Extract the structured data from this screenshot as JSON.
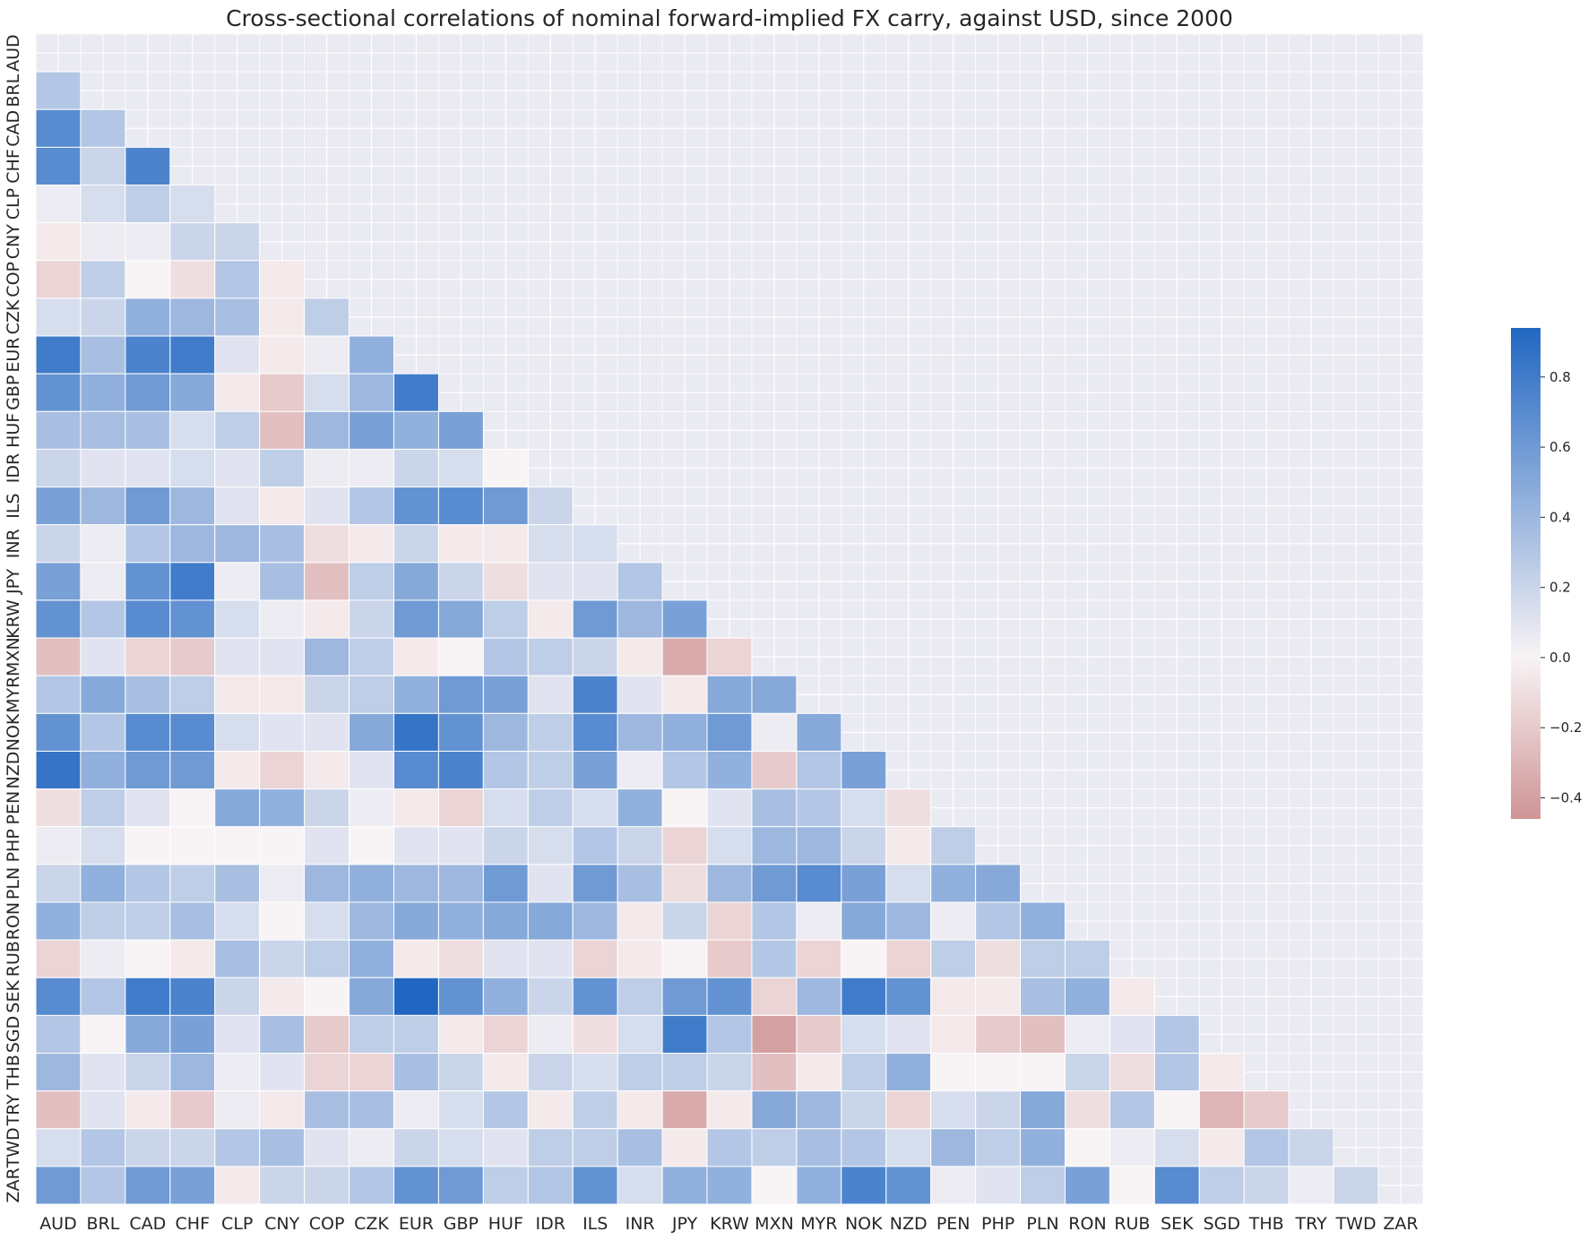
{
  "chart_data": {
    "type": "heatmap",
    "title": "Cross-sectional correlations of nominal forward-implied FX carry, against USD, since 2000",
    "labels": [
      "AUD",
      "BRL",
      "CAD",
      "CHF",
      "CLP",
      "CNY",
      "COP",
      "CZK",
      "EUR",
      "GBP",
      "HUF",
      "IDR",
      "ILS",
      "INR",
      "JPY",
      "KRW",
      "MXN",
      "MYR",
      "NOK",
      "NZD",
      "PEN",
      "PHP",
      "PLN",
      "RON",
      "RUB",
      "SEK",
      "SGD",
      "THB",
      "TRY",
      "TWD",
      "ZAR"
    ],
    "mask": "upper-triangle-and-diagonal",
    "values": [
      [],
      [
        0.3
      ],
      [
        0.7,
        0.3
      ],
      [
        0.7,
        0.2,
        0.75
      ],
      [
        0.05,
        0.15,
        0.25,
        0.15
      ],
      [
        -0.05,
        0.05,
        0.05,
        0.2,
        0.2
      ],
      [
        -0.15,
        0.25,
        0.0,
        -0.1,
        0.3,
        -0.05
      ],
      [
        0.15,
        0.2,
        0.45,
        0.4,
        0.35,
        -0.05,
        0.25
      ],
      [
        0.8,
        0.35,
        0.75,
        0.8,
        0.1,
        -0.05,
        0.05,
        0.45
      ],
      [
        0.65,
        0.45,
        0.6,
        0.5,
        -0.05,
        -0.2,
        0.15,
        0.4,
        0.8
      ],
      [
        0.35,
        0.35,
        0.35,
        0.15,
        0.25,
        -0.25,
        0.4,
        0.55,
        0.45,
        0.55
      ],
      [
        0.2,
        0.1,
        0.1,
        0.15,
        0.1,
        0.25,
        0.05,
        0.05,
        0.2,
        0.15,
        0.0
      ],
      [
        0.55,
        0.4,
        0.6,
        0.4,
        0.1,
        -0.05,
        0.1,
        0.3,
        0.65,
        0.7,
        0.6,
        0.2
      ],
      [
        0.2,
        0.05,
        0.3,
        0.4,
        0.4,
        0.35,
        -0.1,
        -0.05,
        0.2,
        -0.05,
        -0.05,
        0.15,
        0.15
      ],
      [
        0.55,
        0.05,
        0.65,
        0.8,
        0.05,
        0.35,
        -0.25,
        0.25,
        0.5,
        0.2,
        -0.1,
        0.1,
        0.1,
        0.3
      ],
      [
        0.65,
        0.3,
        0.7,
        0.65,
        0.15,
        0.05,
        -0.05,
        0.2,
        0.6,
        0.5,
        0.25,
        -0.05,
        0.6,
        0.4,
        0.55
      ],
      [
        -0.25,
        0.1,
        -0.15,
        -0.2,
        0.1,
        0.1,
        0.4,
        0.25,
        -0.05,
        0.0,
        0.3,
        0.25,
        0.2,
        -0.05,
        -0.35,
        -0.15
      ],
      [
        0.3,
        0.5,
        0.35,
        0.25,
        -0.05,
        -0.05,
        0.2,
        0.25,
        0.45,
        0.6,
        0.55,
        0.1,
        0.75,
        0.1,
        -0.05,
        0.5,
        0.5
      ],
      [
        0.65,
        0.3,
        0.7,
        0.7,
        0.15,
        0.1,
        0.1,
        0.5,
        0.85,
        0.65,
        0.4,
        0.25,
        0.7,
        0.4,
        0.45,
        0.6,
        0.05,
        0.5
      ],
      [
        0.85,
        0.45,
        0.6,
        0.6,
        -0.05,
        -0.15,
        -0.05,
        0.1,
        0.7,
        0.75,
        0.3,
        0.25,
        0.55,
        0.05,
        0.3,
        0.45,
        -0.2,
        0.3,
        0.55
      ],
      [
        -0.1,
        0.25,
        0.1,
        0.0,
        0.5,
        0.45,
        0.2,
        0.05,
        -0.05,
        -0.15,
        0.15,
        0.25,
        0.15,
        0.45,
        0.0,
        0.1,
        0.35,
        0.3,
        0.15,
        -0.1
      ],
      [
        0.05,
        0.15,
        0.0,
        0.0,
        0.0,
        0.0,
        0.1,
        0.0,
        0.1,
        0.1,
        0.2,
        0.15,
        0.3,
        0.2,
        -0.15,
        0.15,
        0.4,
        0.4,
        0.2,
        -0.05,
        0.25
      ],
      [
        0.2,
        0.45,
        0.3,
        0.25,
        0.35,
        0.05,
        0.4,
        0.45,
        0.4,
        0.4,
        0.6,
        0.1,
        0.6,
        0.35,
        -0.1,
        0.4,
        0.6,
        0.7,
        0.55,
        0.15,
        0.45,
        0.5
      ],
      [
        0.45,
        0.25,
        0.25,
        0.35,
        0.15,
        0.0,
        0.15,
        0.4,
        0.5,
        0.45,
        0.5,
        0.5,
        0.4,
        -0.05,
        0.2,
        -0.15,
        0.3,
        0.05,
        0.5,
        0.4,
        0.05,
        0.3,
        0.45
      ],
      [
        -0.15,
        0.05,
        0.0,
        -0.05,
        0.35,
        0.2,
        0.25,
        0.45,
        -0.05,
        -0.1,
        0.1,
        0.1,
        -0.15,
        -0.05,
        0.0,
        -0.2,
        0.3,
        -0.15,
        0.0,
        -0.15,
        0.25,
        -0.1,
        0.25,
        0.25
      ],
      [
        0.7,
        0.3,
        0.8,
        0.75,
        0.2,
        -0.05,
        0.0,
        0.5,
        0.95,
        0.65,
        0.45,
        0.2,
        0.65,
        0.25,
        0.6,
        0.65,
        -0.15,
        0.4,
        0.8,
        0.65,
        -0.05,
        -0.05,
        0.35,
        0.45,
        -0.05
      ],
      [
        0.3,
        0.0,
        0.5,
        0.55,
        0.1,
        0.35,
        -0.2,
        0.25,
        0.25,
        -0.05,
        -0.15,
        0.05,
        -0.1,
        0.15,
        0.8,
        0.3,
        -0.4,
        -0.2,
        0.15,
        0.1,
        -0.05,
        -0.2,
        -0.25,
        0.05,
        0.1,
        0.3
      ],
      [
        0.4,
        0.1,
        0.2,
        0.4,
        0.05,
        0.1,
        -0.15,
        -0.15,
        0.35,
        0.2,
        -0.05,
        0.2,
        0.15,
        0.25,
        0.25,
        0.2,
        -0.25,
        -0.05,
        0.25,
        0.45,
        0.0,
        0.0,
        0.0,
        0.2,
        -0.1,
        0.3,
        -0.05
      ],
      [
        -0.25,
        0.1,
        -0.05,
        -0.2,
        0.05,
        -0.05,
        0.35,
        0.35,
        0.05,
        0.15,
        0.3,
        -0.05,
        0.25,
        -0.05,
        -0.35,
        -0.05,
        0.5,
        0.4,
        0.2,
        -0.15,
        0.15,
        0.2,
        0.5,
        -0.1,
        0.3,
        0.0,
        -0.3,
        -0.2
      ],
      [
        0.15,
        0.3,
        0.2,
        0.2,
        0.3,
        0.35,
        0.1,
        0.05,
        0.2,
        0.15,
        0.1,
        0.25,
        0.25,
        0.35,
        -0.05,
        0.3,
        0.25,
        0.35,
        0.3,
        0.15,
        0.4,
        0.25,
        0.45,
        0.0,
        0.05,
        0.15,
        -0.05,
        0.3,
        0.2
      ],
      [
        0.6,
        0.3,
        0.6,
        0.55,
        -0.05,
        0.2,
        0.2,
        0.3,
        0.65,
        0.6,
        0.25,
        0.3,
        0.65,
        0.15,
        0.45,
        0.45,
        0.0,
        0.45,
        0.75,
        0.65,
        0.05,
        0.1,
        0.25,
        0.55,
        0.0,
        0.7,
        0.25,
        0.2,
        0.05,
        0.2
      ]
    ],
    "colorbar": {
      "vmin": -0.46,
      "vmax": 0.94,
      "ticks": [
        0.8,
        0.6,
        0.4,
        0.2,
        0.0,
        -0.2,
        -0.4
      ],
      "tick_labels": [
        "0.8",
        "0.6",
        "0.4",
        "0.2",
        "0.0",
        "−0.2",
        "−0.4"
      ]
    },
    "colors": {
      "negative": "#cf9496",
      "neutral": "#f8f3f5",
      "positive": "#2167c2",
      "background": "#eaeaf2",
      "grid": "#ffffff",
      "text": "#262626"
    },
    "grid": true,
    "xlabel": "",
    "ylabel": ""
  }
}
